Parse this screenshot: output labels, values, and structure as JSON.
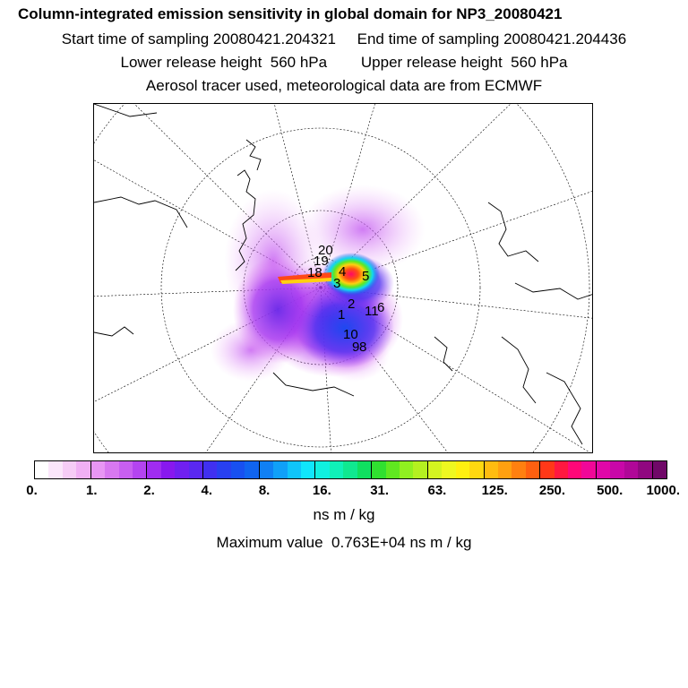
{
  "title": {
    "line1": "Column-integrated emission sensitivity in global domain for NP3_20080421",
    "line2": "Start time of sampling 20080421.204321     End time of sampling 20080421.204436",
    "line3": "Lower release height  560 hPa        Upper release height  560 hPa",
    "line4": "Aerosol tracer used, meteorological data are from ECMWF"
  },
  "map": {
    "projection": "polar stereographic (north)",
    "trajectory_labels": [
      "20",
      "19",
      "18",
      "4",
      "5",
      "3",
      "2",
      "1",
      "11",
      "6",
      "10",
      "9",
      "8"
    ]
  },
  "colorbar": {
    "colors": [
      "#ffffff",
      "#fbe6fb",
      "#f6ccf6",
      "#f0b0f4",
      "#e896f4",
      "#d878f0",
      "#c85ff0",
      "#b444f0",
      "#a02cf0",
      "#8818ee",
      "#7020f0",
      "#5a28f0",
      "#4030f0",
      "#2840f0",
      "#1850f0",
      "#1064f0",
      "#1080f4",
      "#10a0f8",
      "#10c4fa",
      "#10e6fc",
      "#10f0e0",
      "#10f0b8",
      "#10e890",
      "#10e060",
      "#30e030",
      "#60e820",
      "#90f020",
      "#b4f020",
      "#d4f420",
      "#eef820",
      "#fff010",
      "#ffd810",
      "#ffbc10",
      "#ffa010",
      "#ff8010",
      "#ff6010",
      "#ff3818",
      "#ff1840",
      "#ff0878",
      "#f00898",
      "#e008a8",
      "#c808a8",
      "#b00898",
      "#900880",
      "#700868"
    ],
    "tick_labels": [
      "0.",
      "1.",
      "2.",
      "4.",
      "8.",
      "16.",
      "31.",
      "63.",
      "125.",
      "250.",
      "500.",
      "1000."
    ],
    "unit": "ns m / kg"
  },
  "max_value_text": "Maximum value  0.763E+04 ns m / kg"
}
